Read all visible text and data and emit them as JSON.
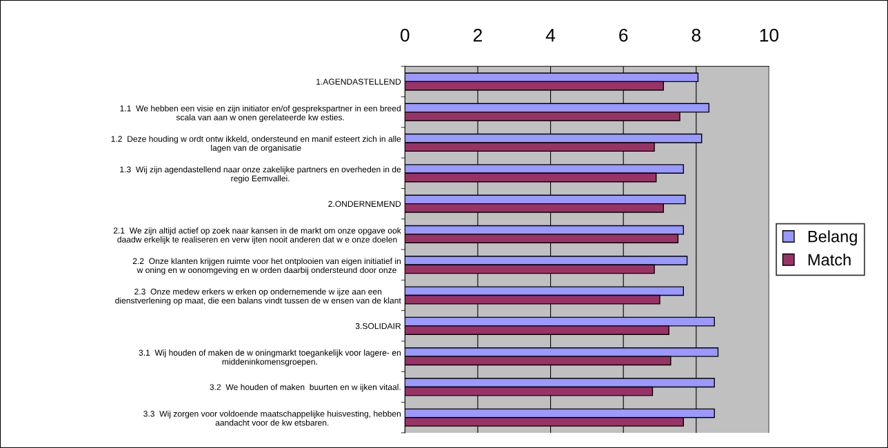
{
  "chart_data": {
    "type": "bar",
    "orientation": "horizontal",
    "categories": [
      "1.AGENDASTELLEND",
      "1.1  We hebben een visie en zijn initiator en/of gesprekspartner in een breed\nscala van aan w onen gerelateerde kw esties.",
      "1.2  Deze houding w ordt ontw ikkeld, ondersteund en manif esteert zich in alle\nlagen van de organisatie",
      "1.3  Wij zijn agendastellend naar onze zakelijke partners en overheden in de\nregio Eemvallei.",
      "2.ONDERNEMEND",
      "2.1  We zijn altijd actief op zoek naar kansen in de markt om onze opgave ook\ndaadw erkelijk te realiseren en verw ijten nooit anderen dat w e onze doelen",
      "2.2  Onze klanten krijgen ruimte voor het ontplooien van eigen initiatief in\nw oning en w oonomgeving en w orden daarbij ondersteund door onze",
      "2.3  Onze medew erkers w erken op ondernemende w ijze aan een\ndienstverlening op maat, die een balans vindt tussen de w ensen van de klant",
      "3.SOLIDAIR",
      "3.1  Wij houden of maken de w oningmarkt toegankelijk voor lagere- en\nmiddeninkomensgroepen.",
      "3.2  We houden of maken  buurten en w ijken vitaal.",
      "3.3  Wij zorgen voor voldoende maatschappelijke huisvesting, hebben\naandacht voor de kw etsbaren."
    ],
    "series": [
      {
        "name": "Belang",
        "color": "#9999ff",
        "values": [
          8.05,
          8.35,
          8.15,
          7.65,
          7.7,
          7.65,
          7.75,
          7.65,
          8.5,
          8.6,
          8.5,
          8.5
        ]
      },
      {
        "name": "Match",
        "color": "#993366",
        "values": [
          7.1,
          7.55,
          6.85,
          6.9,
          7.1,
          7.5,
          6.85,
          7.0,
          7.25,
          7.3,
          6.8,
          7.65
        ]
      }
    ],
    "xlim": [
      0,
      10
    ],
    "xticks": [
      0,
      2,
      4,
      6,
      8,
      10
    ],
    "grid": "x",
    "legend": "right"
  }
}
